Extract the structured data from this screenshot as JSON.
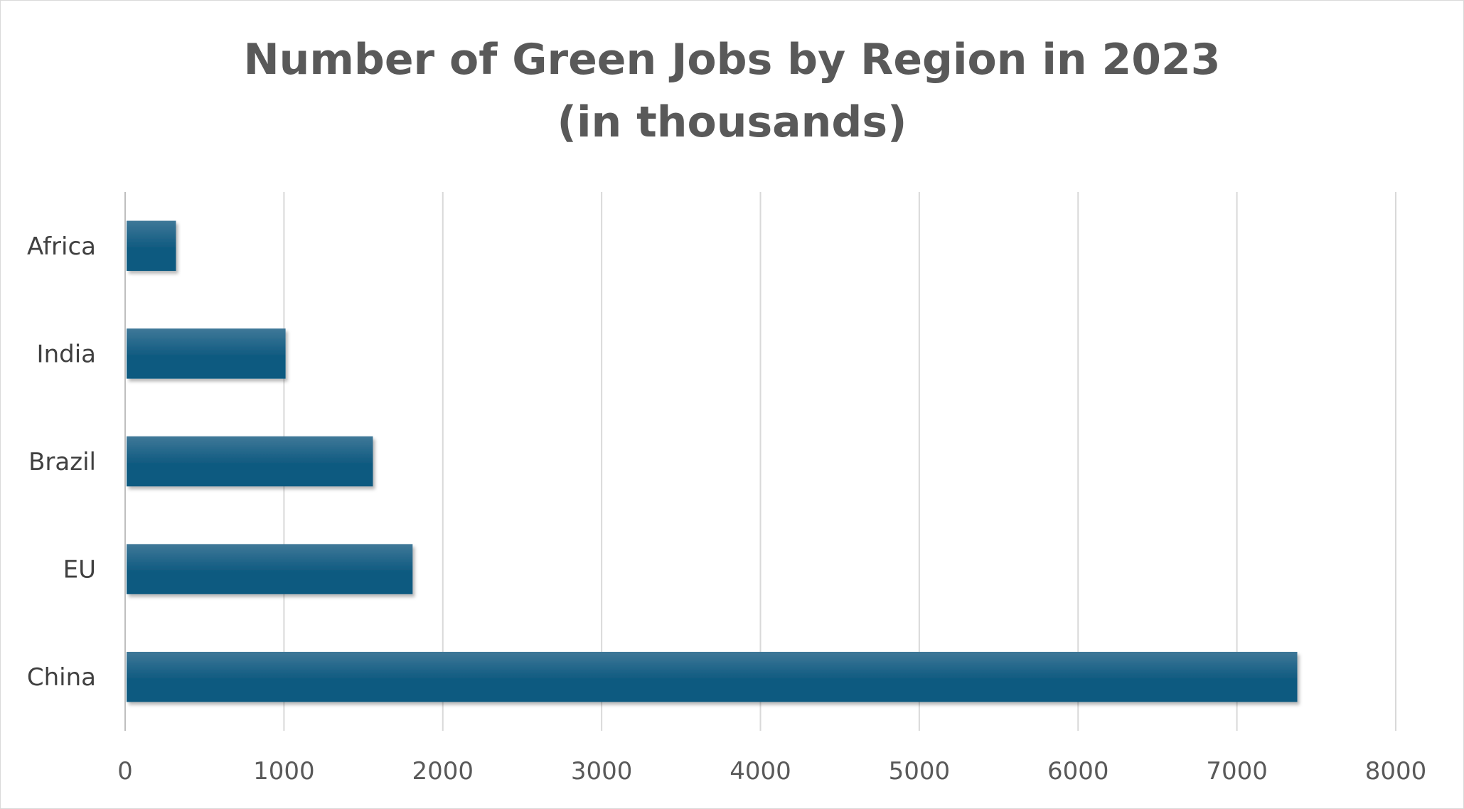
{
  "chart_data": {
    "type": "bar",
    "orientation": "horizontal",
    "title": "Number of Green Jobs by Region in 2023",
    "subtitle": "(in thousands)",
    "categories": [
      "Africa",
      "India",
      "Brazil",
      "EU",
      "China"
    ],
    "values": [
      320,
      1010,
      1560,
      1810,
      7380
    ],
    "xlabel": "",
    "ylabel": "",
    "xlim": [
      0,
      8000
    ],
    "xticks": [
      "0",
      "1000",
      "2000",
      "3000",
      "4000",
      "5000",
      "6000",
      "7000",
      "8000"
    ],
    "grid": true,
    "legend": "none",
    "bar_color": "#0f5a80",
    "bar_color_light": "#3f7898"
  }
}
